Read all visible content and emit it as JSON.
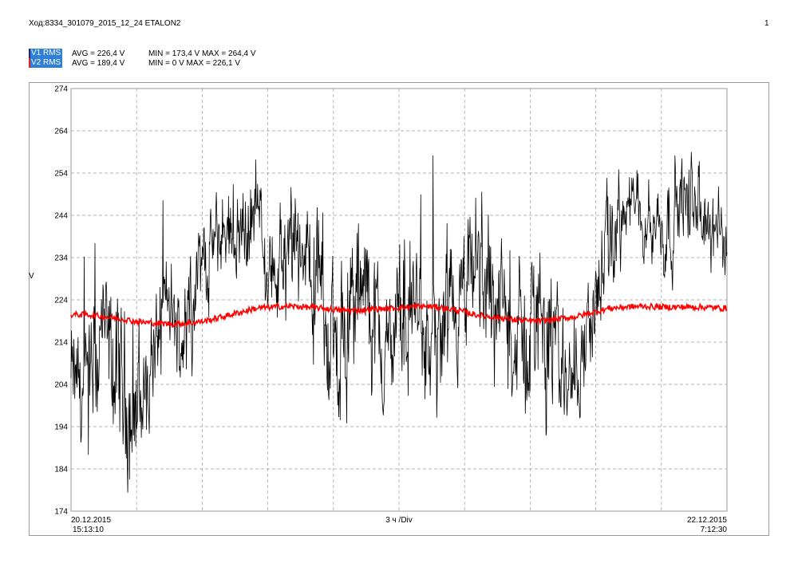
{
  "header": {
    "title": "Ход:8334_301079_2015_12_24 ETALON2",
    "page_number": "1"
  },
  "legend": [
    {
      "name": "V1 RMS",
      "avg": "AVG = 226,4 V",
      "minmax": "MIN = 173,4 V MAX = 264,4 V",
      "mark_color": "#1b2a6b"
    },
    {
      "name": "V2 RMS",
      "avg": "AVG = 189,4 V",
      "minmax": "MIN = 0 V MAX = 226,1 V",
      "mark_color": "#e8202a"
    }
  ],
  "colors": {
    "legend_tag_bg": "#2f7fd6",
    "grid": "#9a9a9a",
    "v1": "#000000",
    "v2": "#ff0000"
  },
  "chart_data": {
    "type": "line",
    "ylabel": "V",
    "ylim": [
      174,
      274
    ],
    "yticks": [
      "274",
      "264",
      "254",
      "244",
      "234",
      "224",
      "214",
      "204",
      "194",
      "184",
      "174"
    ],
    "x_start": {
      "date": "20.12.2015",
      "time": "15:13:10"
    },
    "x_end": {
      "date": "22.12.2015",
      "time": "7:12:30"
    },
    "x_division_label": "3 ч /Div",
    "grid": true,
    "series": [
      {
        "name": "V1 RMS",
        "color": "#000000",
        "envelope": {
          "center": [
            205,
            200,
            215,
            205,
            198,
            206,
            224,
            214,
            230,
            236,
            241,
            240,
            245,
            228,
            232,
            236,
            226,
            212,
            222,
            226,
            210,
            218,
            224,
            210,
            214,
            220,
            232,
            226,
            218,
            212,
            224,
            210,
            206,
            214,
            230,
            242,
            246,
            244,
            240,
            248,
            246,
            240,
            238
          ],
          "spread": [
            12,
            14,
            16,
            16,
            18,
            14,
            10,
            10,
            10,
            9,
            8,
            10,
            8,
            12,
            14,
            12,
            14,
            16,
            16,
            14,
            16,
            14,
            16,
            16,
            16,
            14,
            14,
            16,
            14,
            16,
            16,
            16,
            12,
            12,
            12,
            10,
            8,
            8,
            10,
            10,
            10,
            10,
            8
          ]
        }
      },
      {
        "name": "V2 RMS",
        "color": "#ff0000",
        "values": [
          220.5,
          220.5,
          220.0,
          219.5,
          218.8,
          218.5,
          218.3,
          218.5,
          219.0,
          220.0,
          221.0,
          222.0,
          222.3,
          222.5,
          222.3,
          222.0,
          221.5,
          221.5,
          221.8,
          222.0,
          222.3,
          222.5,
          222.2,
          221.5,
          220.5,
          220.0,
          219.5,
          219.0,
          219.0,
          219.5,
          220.0,
          221.0,
          222.0,
          222.3,
          222.5,
          222.3,
          222.3,
          222.3,
          222.2,
          222.0
        ]
      }
    ]
  }
}
